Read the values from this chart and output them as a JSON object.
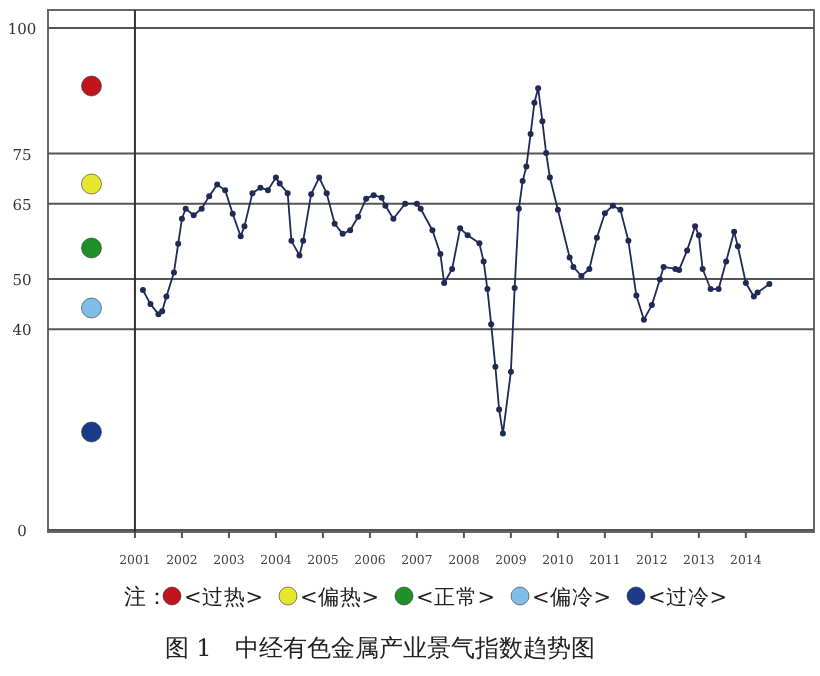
{
  "chart_data": {
    "type": "line",
    "title": "图 1　中经有色金属产业景气指数趋势图",
    "x": [
      2001.17,
      2001.33,
      2001.5,
      2001.58,
      2001.67,
      2001.83,
      2001.92,
      2002.0,
      2002.08,
      2002.25,
      2002.42,
      2002.58,
      2002.75,
      2002.92,
      2003.08,
      2003.25,
      2003.33,
      2003.5,
      2003.67,
      2003.83,
      2004.0,
      2004.08,
      2004.25,
      2004.33,
      2004.5,
      2004.58,
      2004.75,
      2004.92,
      2005.08,
      2005.25,
      2005.42,
      2005.58,
      2005.75,
      2005.92,
      2006.08,
      2006.25,
      2006.33,
      2006.5,
      2006.75,
      2007.0,
      2007.08,
      2007.33,
      2007.5,
      2007.58,
      2007.75,
      2007.92,
      2008.08,
      2008.33,
      2008.42,
      2008.5,
      2008.58,
      2008.67,
      2008.75,
      2008.83,
      2009.0,
      2009.08,
      2009.17,
      2009.25,
      2009.33,
      2009.42,
      2009.5,
      2009.58,
      2009.67,
      2009.75,
      2009.83,
      2010.0,
      2010.25,
      2010.33,
      2010.5,
      2010.67,
      2010.83,
      2011.0,
      2011.17,
      2011.33,
      2011.5,
      2011.67,
      2011.83,
      2012.0,
      2012.17,
      2012.25,
      2012.5,
      2012.58,
      2012.75,
      2012.92,
      2013.0,
      2013.08,
      2013.25,
      2013.42,
      2013.58,
      2013.75,
      2013.83,
      2014.0,
      2014.17,
      2014.25,
      2014.5
    ],
    "series": [
      {
        "color": "#1f2a55",
        "values": [
          47.8,
          45,
          43,
          43.6,
          46.5,
          51.3,
          57,
          62,
          64,
          62.7,
          64,
          66.5,
          68.8,
          67.7,
          63,
          58.5,
          60.5,
          67.1,
          68.2,
          67.7,
          70.2,
          69,
          67.1,
          57.6,
          54.7,
          57.6,
          66.9,
          70.2,
          67.1,
          61,
          59,
          59.7,
          62.4,
          66,
          66.7,
          66.2,
          64.6,
          62,
          65,
          65,
          64,
          59.7,
          55,
          49.2,
          52,
          60.1,
          58.7,
          57.1,
          53.5,
          48,
          41,
          32.5,
          24,
          19.2,
          31.5,
          48.2,
          64,
          69.5,
          72.4,
          78.9,
          85.1,
          88,
          81.4,
          75.1,
          70.2,
          63.8,
          54.3,
          52.4,
          50.6,
          52,
          58.2,
          63.1,
          64.6,
          63.8,
          57.6,
          46.7,
          41.9,
          44.8,
          49.9,
          52.4,
          52,
          51.8,
          55.7,
          60.5,
          58.7,
          52,
          48,
          48,
          53.5,
          59.4,
          56.5,
          49.2,
          46.5,
          47.3,
          49
        ]
      }
    ],
    "xlim": [
      1999.15,
      2015.45
    ],
    "xticks": [
      2001,
      2002,
      2003,
      2004,
      2005,
      2006,
      2007,
      2008,
      2009,
      2010,
      2011,
      2012,
      2013,
      2014
    ],
    "ylim": [
      0,
      100
    ],
    "yticks": [
      0,
      40,
      50,
      65,
      75,
      100
    ],
    "grid": "y",
    "marker": "circle",
    "line_style": "solid",
    "ref_lines": [
      {
        "axis": "x",
        "value": 2001,
        "color": "#333333"
      }
    ],
    "annotations": [
      "注：",
      "<过热>",
      "<偏热>",
      "<正常>",
      "<偏冷>",
      "<过冷>"
    ]
  }
}
